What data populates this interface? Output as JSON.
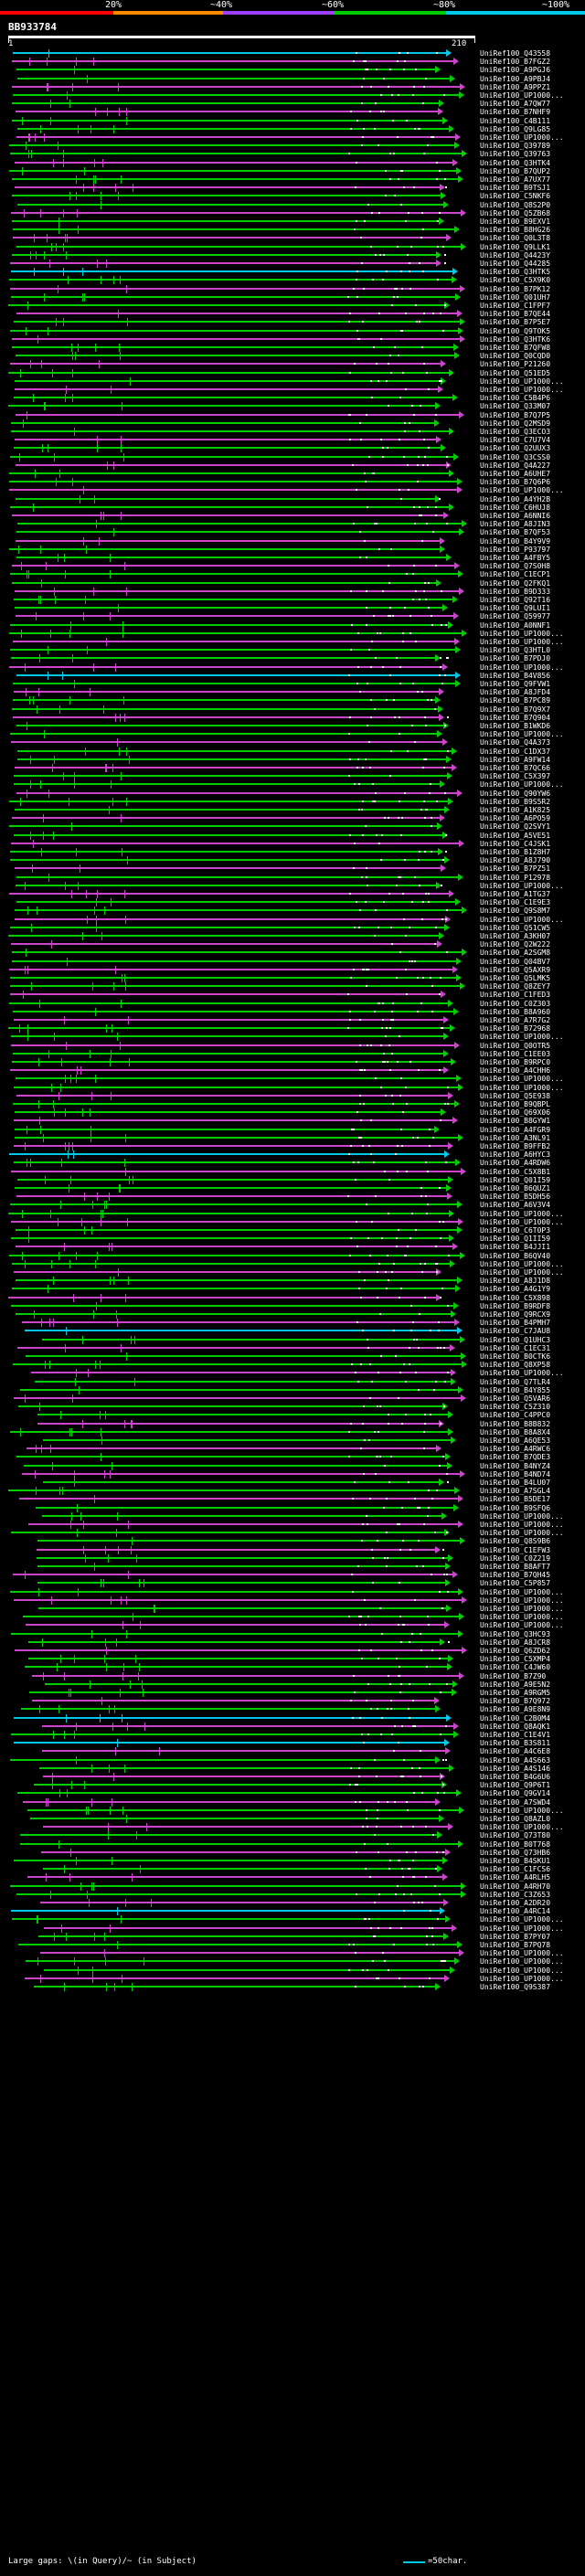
{
  "legend": {
    "labels": [
      "20%",
      "~40%",
      "~60%",
      "~80%",
      "~100%"
    ],
    "colors": [
      "#ff0000",
      "#ff8c00",
      "#a0a0ff",
      "#00cc00",
      "#00c8e6"
    ]
  },
  "query": {
    "id": "BB933784",
    "start_tick": "1",
    "end_tick": "210"
  },
  "hits": [
    "UniRef100_Q43558",
    "UniRef100_B7FGZ2",
    "UniRef100_A9PGJ6",
    "UniRef100_A9PBJ4",
    "UniRef100_A9PPZ1",
    "UniRef100_UP1000...",
    "UniRef100_A7QW77",
    "UniRef100_B7NHF9",
    "UniRef100_C4B111",
    "UniRef100_Q9LG85",
    "UniRef100_UP1000...",
    "UniRef100_Q39789",
    "UniRef100_Q39763",
    "UniRef100_Q3HTK4",
    "UniRef100_B7QUP2",
    "UniRef100_A7UX77",
    "UniRef100_B9TSJ1",
    "UniRef100_C5NKF6",
    "UniRef100_Q8S2P0",
    "UniRef100_Q5ZB68",
    "UniRef100_B9EXV1",
    "UniRef100_B8HG26",
    "UniRef100_Q0L3T8",
    "UniRef100_Q9LLK1",
    "UniRef100_Q4423Y",
    "UniRef100_Q44285",
    "UniRef100_Q3HTK5",
    "UniRef100_C5X9K0",
    "UniRef100_B7PK12",
    "UniRef100_Q01UH7",
    "UniRef100_C1FPF7",
    "UniRef100_B7QE44",
    "UniRef100_B7P5E7",
    "UniRef100_Q9TOK5",
    "UniRef100_Q3HTK6",
    "UniRef100_B7QFW8",
    "UniRef100_Q0CQD0",
    "UniRef100_P21260",
    "UniRef100_Q51ED5",
    "UniRef100_UP1000...",
    "UniRef100_UP1000...",
    "UniRef100_C5B4P6",
    "UniRef100_Q33M07",
    "UniRef100_B7Q7P5",
    "UniRef100_Q2MSD9",
    "UniRef100_Q3ECO3",
    "UniRef100_C7U7V4",
    "UniRef100_Q2UUX3",
    "UniRef100_Q3CSS0",
    "UniRef100_Q4A227",
    "UniRef100_A6UHE7",
    "UniRef100_B7Q6P6",
    "UniRef100_UP1000...",
    "UniRef100_A4YH2B",
    "UniRef100_C6HUJ8",
    "UniRef100_A6NNI6",
    "UniRef100_A8JIN3",
    "UniRef100_B7QF53",
    "UniRef100_B4Y9V9",
    "UniRef100_P93797",
    "UniRef100_A4FBY5",
    "UniRef100_Q7S0H8",
    "UniRef100_C1ECP1",
    "UniRef100_Q2FKQ1",
    "UniRef100_B9D333",
    "UniRef100_Q92T16",
    "UniRef100_Q9LUI1",
    "UniRef100_Q59977",
    "UniRef100_A0NNF1",
    "UniRef100_UP1000...",
    "UniRef100_UP1000...",
    "UniRef100_Q3HTL0",
    "UniRef100_B7PDJ0",
    "UniRef100_UP1000...",
    "UniRef100_B4V856",
    "UniRef100_Q9FVW1",
    "UniRef100_A8JFD4",
    "UniRef100_B7PC89",
    "UniRef100_B7Q9X7",
    "UniRef100_B7Q904",
    "UniRef100_B1WKD6",
    "UniRef100_UP1000...",
    "UniRef100_Q4A373",
    "UniRef100_C1DX37",
    "UniRef100_A9FW14",
    "UniRef100_B7QC66",
    "UniRef100_C5X397",
    "UniRef100_UP1000...",
    "UniRef100_Q90YW6",
    "UniRef100_B9S5R2",
    "UniRef100_A1K825",
    "UniRef100_A6PO59",
    "UniRef100_Q2SVY1",
    "UniRef100_A5VE51",
    "UniRef100_C4JSK1",
    "UniRef100_B1Z8H7",
    "UniRef100_A8J790",
    "UniRef100_B7PZ51",
    "UniRef100_P12978",
    "UniRef100_UP1000...",
    "UniRef100_A1TG37",
    "UniRef100_C1E9E3",
    "UniRef100_Q9S8M7",
    "UniRef100_UP1000...",
    "UniRef100_Q51CW5",
    "UniRef100_A3KH07",
    "UniRef100_Q2W222",
    "UniRef100_A2SGM8",
    "UniRef100_Q04BV7",
    "UniRef100_Q5AXR9",
    "UniRef100_Q5LMK5",
    "UniRef100_Q8ZEY7",
    "UniRef100_C1FED3",
    "UniRef100_C0Z303",
    "UniRef100_B8A960",
    "UniRef100_A7R7G2",
    "UniRef100_B72968",
    "UniRef100_UP1000...",
    "UniRef100_Q0OTR5",
    "UniRef100_C1EE03",
    "UniRef100_B9RPC0",
    "UniRef100_A4CHH6",
    "UniRef100_UP1000...",
    "UniRef100_UP1000...",
    "UniRef100_Q5E938",
    "UniRef100_B9QBPL",
    "UniRef100_Q69X06",
    "UniRef100_B8GYW1",
    "UniRef100_A4FGR9",
    "UniRef100_A3NL91",
    "UniRef100_B9FFB2",
    "UniRef100_A6HYC3",
    "UniRef100_A4RDW6",
    "UniRef100_C5X8B1",
    "UniRef100_Q01I59",
    "UniRef100_B6QUZ1",
    "UniRef100_B5DH56",
    "UniRef100_A6V3V4",
    "UniRef100_UP1000...",
    "UniRef100_UP1000...",
    "UniRef100_C6T0P3",
    "UniRef100_Q1II59",
    "UniRef100_B4JJI1",
    "UniRef100_B6QV40",
    "UniRef100_UP1000...",
    "UniRef100_UP1000...",
    "UniRef100_A8J1D8",
    "UniRef100_A4G1Y9",
    "UniRef100_C5X898",
    "UniRef100_B9RDF8",
    "UniRef100_Q9RCX9",
    "UniRef100_B4PMH7",
    "UniRef100_C7JAU8",
    "UniRef100_Q1UHC3",
    "UniRef100_C1EC31",
    "UniRef100_B0CTK6",
    "UniRef100_Q8XP58",
    "UniRef100_UP1000...",
    "UniRef100_Q7TLR4",
    "UniRef100_B4Y855",
    "UniRef100_Q5VAR6",
    "UniRef100_C5Z310",
    "UniRef100_C4PPC0",
    "UniRef100_B8B832",
    "UniRef100_B8A8X4",
    "UniRef100_A6QE53",
    "UniRef100_A4RWC6",
    "UniRef100_B7QDE3",
    "UniRef100_B4NYZ4",
    "UniRef100_B4ND74",
    "UniRef100_B4LU07",
    "UniRef100_A7SGL4",
    "UniRef100_B5DE17",
    "UniRef100_B9SFQ6",
    "UniRef100_UP1000...",
    "UniRef100_UP1000...",
    "UniRef100_UP1000...",
    "UniRef100_Q8S9B6",
    "UniRef100_C1EFW3",
    "UniRef100_C0Z219",
    "UniRef100_B8AFT7",
    "UniRef100_B7QH45",
    "UniRef100_C5P857",
    "UniRef100_UP1000...",
    "UniRef100_UP1000...",
    "UniRef100_UP1000...",
    "UniRef100_UP1000...",
    "UniRef100_UP1000...",
    "UniRef100_Q3HC93",
    "UniRef100_A8JCR8",
    "UniRef100_Q6ZD62",
    "UniRef100_C5XMP4",
    "UniRef100_C4JW60",
    "UniRef100_B7Z90",
    "UniRef100_A9E5N2",
    "UniRef100_A9RGM5",
    "UniRef100_B7Q972",
    "UniRef100_A9E8N9",
    "UniRef100_C2B0M4",
    "UniRef100_Q8AQK1",
    "UniRef100_C1E4V1",
    "UniRef100_B3S811",
    "UniRef100_A4C6E8",
    "UniRef100_A4S663",
    "UniRef100_A4S146",
    "UniRef100_B4G6U6",
    "UniRef100_Q9P6T1",
    "UniRef100_Q9GV14",
    "UniRef100_A7SWD4",
    "UniRef100_UP1000...",
    "UniRef100_Q8AZL0",
    "UniRef100_UP1000...",
    "UniRef100_Q73T80",
    "UniRef100_B0T768",
    "UniRef100_Q73HB6",
    "UniRef100_B4SKU1",
    "UniRef100_C1FCS6",
    "UniRef100_A4RLH5",
    "UniRef100_A4RH70",
    "UniRef100_C3Z653",
    "UniRef100_A2DR20",
    "UniRef100_A4RC14",
    "UniRef100_UP1000...",
    "UniRef100_UP1000...",
    "UniRef100_B7PY07",
    "UniRef100_B7PQ78",
    "UniRef100_UP1000...",
    "UniRef100_UP1000...",
    "UniRef100_UP1000...",
    "UniRef100_UP1000...",
    "UniRef100_Q9S387"
  ],
  "footer": {
    "text": "Large gaps: \\(in Query)/~ (in Subject)",
    "scale": "=50char."
  }
}
